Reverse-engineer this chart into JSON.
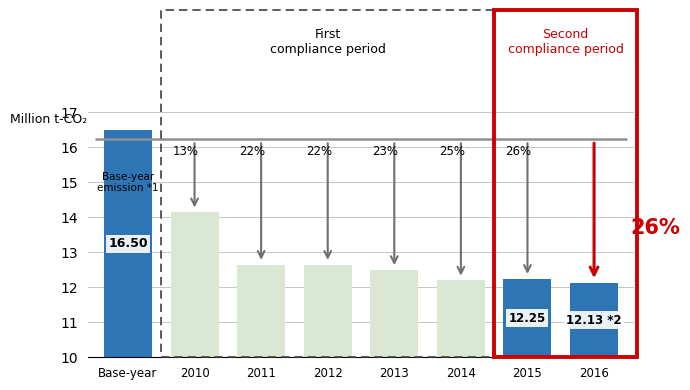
{
  "categories": [
    "Base-year",
    "2010",
    "2011",
    "2012",
    "2013",
    "2014",
    "2015",
    "2016"
  ],
  "values": [
    16.5,
    14.15,
    12.65,
    12.65,
    12.5,
    12.2,
    12.25,
    12.13
  ],
  "bar_colors": [
    "#2e75b6",
    "#dae8d3",
    "#dae8d3",
    "#dae8d3",
    "#dae8d3",
    "#dae8d3",
    "#2e75b6",
    "#2e75b6"
  ],
  "bar_labels": [
    "16.50",
    "",
    "",
    "",
    "",
    "",
    "12.25",
    "12.13 *2"
  ],
  "pct_labels": [
    "",
    "13%",
    "22%",
    "22%",
    "23%",
    "25%",
    "26%",
    ""
  ],
  "baseline": 16.5,
  "reference_line_y": 16.25,
  "ylim": [
    10,
    17
  ],
  "yticks": [
    10,
    11,
    12,
    13,
    14,
    15,
    16,
    17
  ],
  "ylabel": "Million t-CO₂",
  "first_period_label": "First\ncompliance period",
  "second_period_label": "Second\ncompliance period",
  "base_year_annotation": "Base-year\nemission *1",
  "big_pct_label": "26%",
  "arrow_color_first": "#707070",
  "arrow_color_second": "#cc0000",
  "ref_line_color": "#909090",
  "first_box_color": "#404040",
  "second_box_color": "#cc0000",
  "background_color": "#ffffff"
}
